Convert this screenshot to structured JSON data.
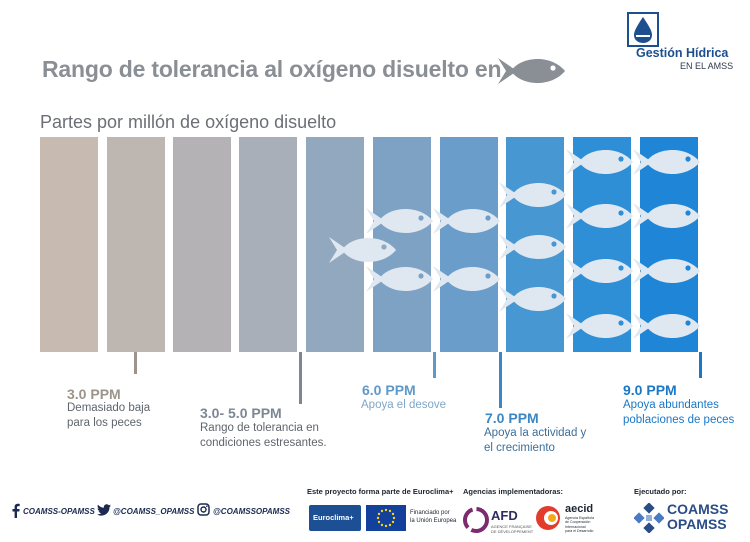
{
  "header": {
    "title": "Rango de tolerancia al oxígeno disuelto en",
    "subtitle": "Partes por millón de oxígeno disuelto",
    "logo_name": "Gestión Hídrica",
    "logo_sub": "EN EL AMSS"
  },
  "levels": [
    {
      "ppm": "3.0 PPM",
      "lines": [
        "Demasiado baja",
        "para los peces"
      ],
      "color": "#9c948a"
    },
    {
      "ppm": "3.0- 5.0 PPM",
      "lines": [
        "Rango de tolerancia en",
        "condiciones estresantes."
      ],
      "color": "#7c8794"
    },
    {
      "ppm": "6.0 PPM",
      "lines": [
        "Apoya el desove"
      ],
      "color": "#5f99c8"
    },
    {
      "ppm": "7.0 PPM",
      "lines": [
        "Apoya la actividad y",
        "el crecimiento"
      ],
      "color": "#3c86c4"
    },
    {
      "ppm": "9.0 PPM",
      "lines": [
        "Apoya abundantes",
        "poblaciones de peces"
      ],
      "color": "#1a78c6"
    }
  ],
  "colors": {
    "bars": [
      "#c6bab1",
      "#beb6b1",
      "#b4b2b5",
      "#a9afb9",
      "#92a8bf",
      "#7ea2c4",
      "#6a9dca",
      "#4797d2",
      "#2f8fd6",
      "#1f86d7"
    ],
    "fish": "#dfe8f1",
    "title_grey": "#8a8f96"
  },
  "fish_per_column": [
    0,
    0,
    0,
    0,
    1,
    2,
    2,
    3,
    4,
    4
  ],
  "footer": {
    "social": [
      "COAMSS-OPAMSS",
      "@COAMSS_OPAMSS",
      "@COAMSSOPAMSS"
    ],
    "euro_label": "Este proyecto forma parte de Euroclima+",
    "euroclima": "Euroclima+",
    "eu_note_1": "Financiado por",
    "eu_note_2": "la Unión Europea",
    "agencies_label": "Agencias implementadoras:",
    "afd": "AFD",
    "afd_note_1": "AGENCE FRANÇAISE",
    "afd_note_2": "DE DÉVELOPPEMENT",
    "aecid": "aecid",
    "aecid_note_1": "Agencia Española",
    "aecid_note_2": "de Cooperación",
    "aecid_note_3": "Internacional",
    "aecid_note_4": "para el Desarrollo",
    "executed_label": "Ejecutado por:",
    "coamss": "COAMSS",
    "opamss": "OPAMSS"
  }
}
